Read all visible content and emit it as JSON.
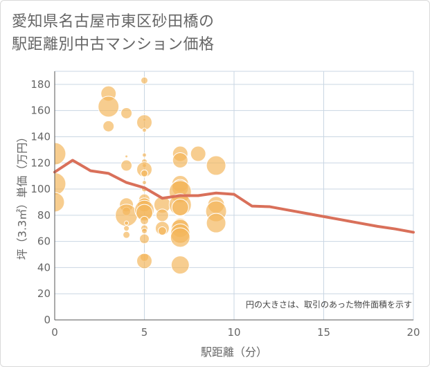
{
  "title": {
    "line1": "愛知県名古屋市東区砂田橋の",
    "line2": "駅距離別中古マンション価格"
  },
  "chart_data": {
    "type": "scatter",
    "title": "愛知県名古屋市東区砂田橋の駅距離別中古マンション価格",
    "xlabel": "駅距離（分）",
    "ylabel": "坪（3.3㎡）単価（万円）",
    "xlim": [
      0,
      20
    ],
    "ylim": [
      0,
      190
    ],
    "xticks": [
      0,
      5,
      10,
      15,
      20
    ],
    "yticks": [
      0,
      20,
      40,
      60,
      80,
      100,
      120,
      140,
      160,
      180
    ],
    "grid": true,
    "note": "円の大きさは、取引のあった物件面積を示す",
    "colors": {
      "bubble": "#f3b65a",
      "line": "#d9705a",
      "grid": "#c9d6e3"
    },
    "bubbles": [
      {
        "x": 0,
        "y": 127,
        "s": 16
      },
      {
        "x": 0,
        "y": 104,
        "s": 16
      },
      {
        "x": 0,
        "y": 90,
        "s": 14
      },
      {
        "x": 3,
        "y": 173,
        "s": 11
      },
      {
        "x": 3,
        "y": 163,
        "s": 15
      },
      {
        "x": 3,
        "y": 148,
        "s": 8
      },
      {
        "x": 4,
        "y": 158,
        "s": 8
      },
      {
        "x": 4,
        "y": 125,
        "s": 2
      },
      {
        "x": 4,
        "y": 118,
        "s": 8
      },
      {
        "x": 4,
        "y": 88,
        "s": 10
      },
      {
        "x": 4,
        "y": 83,
        "s": 6
      },
      {
        "x": 4,
        "y": 80,
        "s": 16
      },
      {
        "x": 4,
        "y": 74,
        "s": 3
      },
      {
        "x": 4,
        "y": 70,
        "s": 4
      },
      {
        "x": 4,
        "y": 65,
        "s": 5
      },
      {
        "x": 5,
        "y": 183,
        "s": 5
      },
      {
        "x": 5,
        "y": 159,
        "s": 1
      },
      {
        "x": 5,
        "y": 153,
        "s": 2
      },
      {
        "x": 5,
        "y": 151,
        "s": 11
      },
      {
        "x": 5,
        "y": 145,
        "s": 3
      },
      {
        "x": 5,
        "y": 126,
        "s": 3
      },
      {
        "x": 5,
        "y": 121,
        "s": 4
      },
      {
        "x": 5,
        "y": 118,
        "s": 3
      },
      {
        "x": 5,
        "y": 115,
        "s": 11
      },
      {
        "x": 5,
        "y": 112,
        "s": 5
      },
      {
        "x": 5,
        "y": 105,
        "s": 3
      },
      {
        "x": 5,
        "y": 100,
        "s": 4
      },
      {
        "x": 5,
        "y": 92,
        "s": 8
      },
      {
        "x": 5,
        "y": 88,
        "s": 10
      },
      {
        "x": 5,
        "y": 84,
        "s": 14
      },
      {
        "x": 5,
        "y": 82,
        "s": 12
      },
      {
        "x": 5,
        "y": 76,
        "s": 6
      },
      {
        "x": 5,
        "y": 70,
        "s": 5
      },
      {
        "x": 5,
        "y": 68,
        "s": 4
      },
      {
        "x": 5,
        "y": 62,
        "s": 7
      },
      {
        "x": 5,
        "y": 48,
        "s": 6
      },
      {
        "x": 5,
        "y": 45,
        "s": 11
      },
      {
        "x": 6,
        "y": 88,
        "s": 12
      },
      {
        "x": 6,
        "y": 80,
        "s": 9
      },
      {
        "x": 6,
        "y": 70,
        "s": 10
      },
      {
        "x": 6,
        "y": 68,
        "s": 6
      },
      {
        "x": 7,
        "y": 127,
        "s": 11
      },
      {
        "x": 7,
        "y": 122,
        "s": 11
      },
      {
        "x": 7,
        "y": 104,
        "s": 12
      },
      {
        "x": 7,
        "y": 101,
        "s": 12
      },
      {
        "x": 7,
        "y": 98,
        "s": 16
      },
      {
        "x": 7,
        "y": 88,
        "s": 16
      },
      {
        "x": 7,
        "y": 86,
        "s": 12
      },
      {
        "x": 7,
        "y": 72,
        "s": 11
      },
      {
        "x": 7,
        "y": 70,
        "s": 13
      },
      {
        "x": 7,
        "y": 66,
        "s": 14
      },
      {
        "x": 7,
        "y": 63,
        "s": 14
      },
      {
        "x": 7,
        "y": 42,
        "s": 13
      },
      {
        "x": 8,
        "y": 127,
        "s": 11
      },
      {
        "x": 9,
        "y": 118,
        "s": 14
      },
      {
        "x": 9,
        "y": 88,
        "s": 12
      },
      {
        "x": 9,
        "y": 83,
        "s": 15
      },
      {
        "x": 9,
        "y": 74,
        "s": 14
      }
    ],
    "series": [
      {
        "x": [
          0,
          1,
          2,
          3,
          4,
          5,
          6,
          7,
          8,
          9,
          10,
          11,
          12,
          13,
          14,
          15,
          16,
          17,
          18,
          19,
          20
        ],
        "y": [
          113,
          122,
          114,
          112,
          105,
          101,
          93,
          95,
          95,
          97,
          96,
          87,
          86.5,
          84,
          81.5,
          79,
          76.5,
          74,
          71.5,
          69.5,
          67
        ]
      }
    ]
  }
}
